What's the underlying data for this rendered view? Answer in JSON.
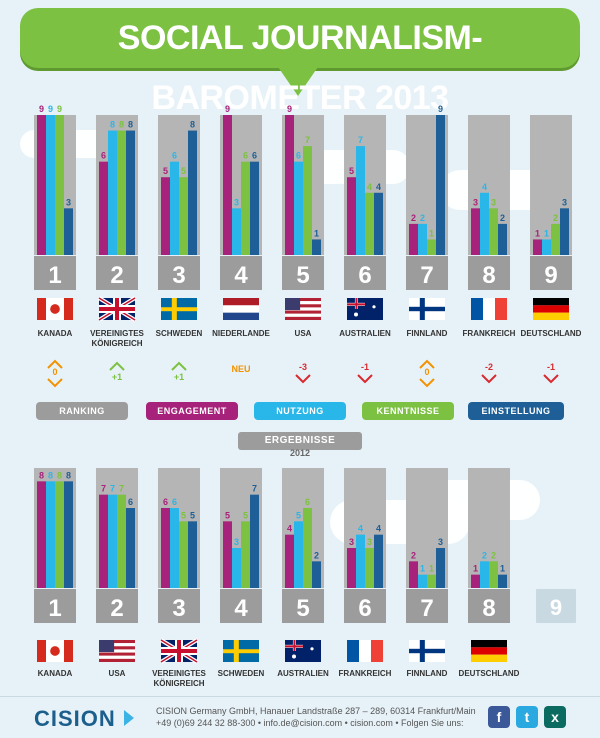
{
  "title": "SOCIAL JOURNALISM-BAROMETER 2013",
  "colors": {
    "ranking": "#9c9c9c",
    "engagement": "#a7227a",
    "nutzung": "#29b6e8",
    "kenntnisse": "#7cc142",
    "einstellung": "#1d5f96",
    "up": "#7cc142",
    "down": "#d8292f",
    "same": "#f39200",
    "new": "#f39200"
  },
  "legend": [
    {
      "label": "RANKING",
      "color": "#9c9c9c"
    },
    {
      "label": "ENGAGEMENT",
      "color": "#a7227a"
    },
    {
      "label": "NUTZUNG",
      "color": "#29b6e8"
    },
    {
      "label": "KENNTNISSE",
      "color": "#7cc142"
    },
    {
      "label": "EINSTELLUNG",
      "color": "#1d5f96"
    }
  ],
  "results_label": "ERGEBNISSE",
  "results_year": "2012",
  "footer": {
    "logo": "CISION",
    "line1": "CISION Germany GmbH, Hanauer Landstraße 287 – 289, 60314 Frankfurt/Main",
    "line2": "+49 (0)69 244 32 88-300 • info.de@cision.com • cision.com • Folgen Sie uns:",
    "social": [
      "f",
      "t",
      "x"
    ]
  },
  "chart_data": [
    {
      "type": "bar",
      "title": "SOCIAL JOURNALISM-BAROMETER 2013",
      "series_names": [
        "RANKING",
        "ENGAGEMENT",
        "NUTZUNG",
        "KENNTNISSE",
        "EINSTELLUNG"
      ],
      "ylim": [
        0,
        9
      ],
      "countries": [
        {
          "name": "KANADA",
          "rank": "1",
          "flag": "canada",
          "engagement": 9,
          "nutzung": 9,
          "kenntnisse": 9,
          "einstellung": 3,
          "change": "same",
          "change_label": "0"
        },
        {
          "name": "VEREINIGTES KÖNIGREICH",
          "rank": "2",
          "flag": "uk",
          "engagement": 6,
          "nutzung": 8,
          "kenntnisse": 8,
          "einstellung": 8,
          "change": "up",
          "change_label": "+1"
        },
        {
          "name": "SCHWEDEN",
          "rank": "3",
          "flag": "sweden",
          "engagement": 5,
          "nutzung": 6,
          "kenntnisse": 5,
          "einstellung": 8,
          "change": "up",
          "change_label": "+1"
        },
        {
          "name": "NIEDERLANDE",
          "rank": "4",
          "flag": "netherlands",
          "engagement": 9,
          "nutzung": 3,
          "kenntnisse": 6,
          "einstellung": 6,
          "change": "new",
          "change_label": "NEU"
        },
        {
          "name": "USA",
          "rank": "5",
          "flag": "usa",
          "engagement": 9,
          "nutzung": 6,
          "kenntnisse": 7,
          "einstellung": 1,
          "change": "down",
          "change_label": "-3"
        },
        {
          "name": "AUSTRALIEN",
          "rank": "6",
          "flag": "australia",
          "engagement": 5,
          "nutzung": 7,
          "kenntnisse": 4,
          "einstellung": 4,
          "change": "down",
          "change_label": "-1"
        },
        {
          "name": "FINNLAND",
          "rank": "7",
          "flag": "finland",
          "engagement": 2,
          "nutzung": 2,
          "kenntnisse": 1,
          "einstellung": 9,
          "change": "same",
          "change_label": "0"
        },
        {
          "name": "FRANKREICH",
          "rank": "8",
          "flag": "france",
          "engagement": 3,
          "nutzung": 4,
          "kenntnisse": 3,
          "einstellung": 2,
          "change": "down",
          "change_label": "-2"
        },
        {
          "name": "DEUTSCHLAND",
          "rank": "9",
          "flag": "germany",
          "engagement": 1,
          "nutzung": 1,
          "kenntnisse": 2,
          "einstellung": 3,
          "change": "down",
          "change_label": "-1"
        }
      ]
    },
    {
      "type": "bar",
      "title": "ERGEBNISSE 2012",
      "series_names": [
        "RANKING",
        "ENGAGEMENT",
        "NUTZUNG",
        "KENNTNISSE",
        "EINSTELLUNG"
      ],
      "ylim": [
        0,
        9
      ],
      "countries": [
        {
          "name": "KANADA",
          "rank": "1",
          "flag": "canada",
          "engagement": 8,
          "nutzung": 8,
          "kenntnisse": 8,
          "einstellung": 8
        },
        {
          "name": "USA",
          "rank": "2",
          "flag": "usa",
          "engagement": 7,
          "nutzung": 7,
          "kenntnisse": 7,
          "einstellung": 6
        },
        {
          "name": "VEREINIGTES KÖNIGREICH",
          "rank": "3",
          "flag": "uk",
          "engagement": 6,
          "nutzung": 6,
          "kenntnisse": 5,
          "einstellung": 5
        },
        {
          "name": "SCHWEDEN",
          "rank": "4",
          "flag": "sweden",
          "engagement": 5,
          "nutzung": 3,
          "kenntnisse": 5,
          "einstellung": 7
        },
        {
          "name": "AUSTRALIEN",
          "rank": "5",
          "flag": "australia",
          "engagement": 4,
          "nutzung": 5,
          "kenntnisse": 6,
          "einstellung": 2
        },
        {
          "name": "FRANKREICH",
          "rank": "6",
          "flag": "france",
          "engagement": 3,
          "nutzung": 4,
          "kenntnisse": 3,
          "einstellung": 4
        },
        {
          "name": "FINNLAND",
          "rank": "7",
          "flag": "finland",
          "engagement": 2,
          "nutzung": 1,
          "kenntnisse": 1,
          "einstellung": 3
        },
        {
          "name": "DEUTSCHLAND",
          "rank": "8",
          "flag": "germany",
          "engagement": 1,
          "nutzung": 2,
          "kenntnisse": 2,
          "einstellung": 1
        },
        {
          "name": "",
          "rank": "9",
          "flag": "",
          "placeholder": true
        }
      ]
    }
  ]
}
